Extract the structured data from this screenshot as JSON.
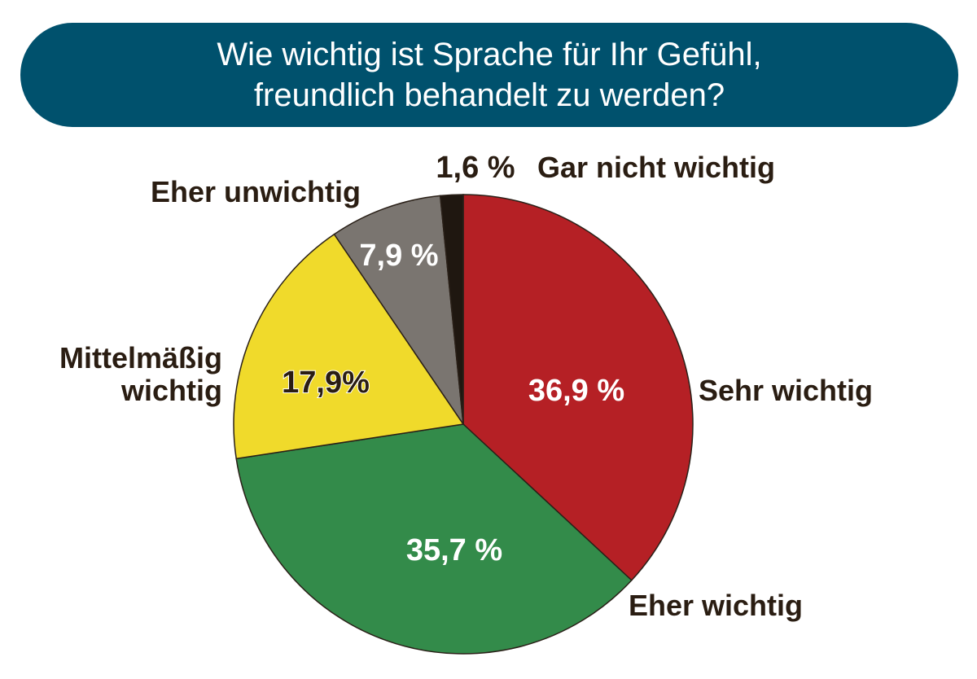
{
  "title_lines": [
    "Wie wichtig ist Sprache für Ihr Gefühl,",
    "freundlich behandelt zu werden?"
  ],
  "chart_data": {
    "type": "pie",
    "title": "Wie wichtig ist Sprache für Ihr Gefühl, freundlich behandelt zu werden?",
    "slices": [
      {
        "label": "Sehr wichtig",
        "value": 36.9,
        "value_label": "36,9 %",
        "color": "#b52025"
      },
      {
        "label": "Eher wichtig",
        "value": 35.7,
        "value_label": "35,7 %",
        "color": "#338b4a"
      },
      {
        "label": "Mittelmäßig wichtig",
        "label_lines": [
          "Mittelmäßig",
          "wichtig"
        ],
        "value": 17.9,
        "value_label": "17,9%",
        "color": "#f0da2b"
      },
      {
        "label": "Eher unwichtig",
        "value": 7.9,
        "value_label": "7,9 %",
        "color": "#7a7570"
      },
      {
        "label": "Gar nicht wichtig",
        "value": 1.6,
        "value_label": "1,6 %",
        "color": "#1f1710"
      }
    ],
    "start_angle": "12 o'clock",
    "direction": "clockwise",
    "legend": "none"
  }
}
